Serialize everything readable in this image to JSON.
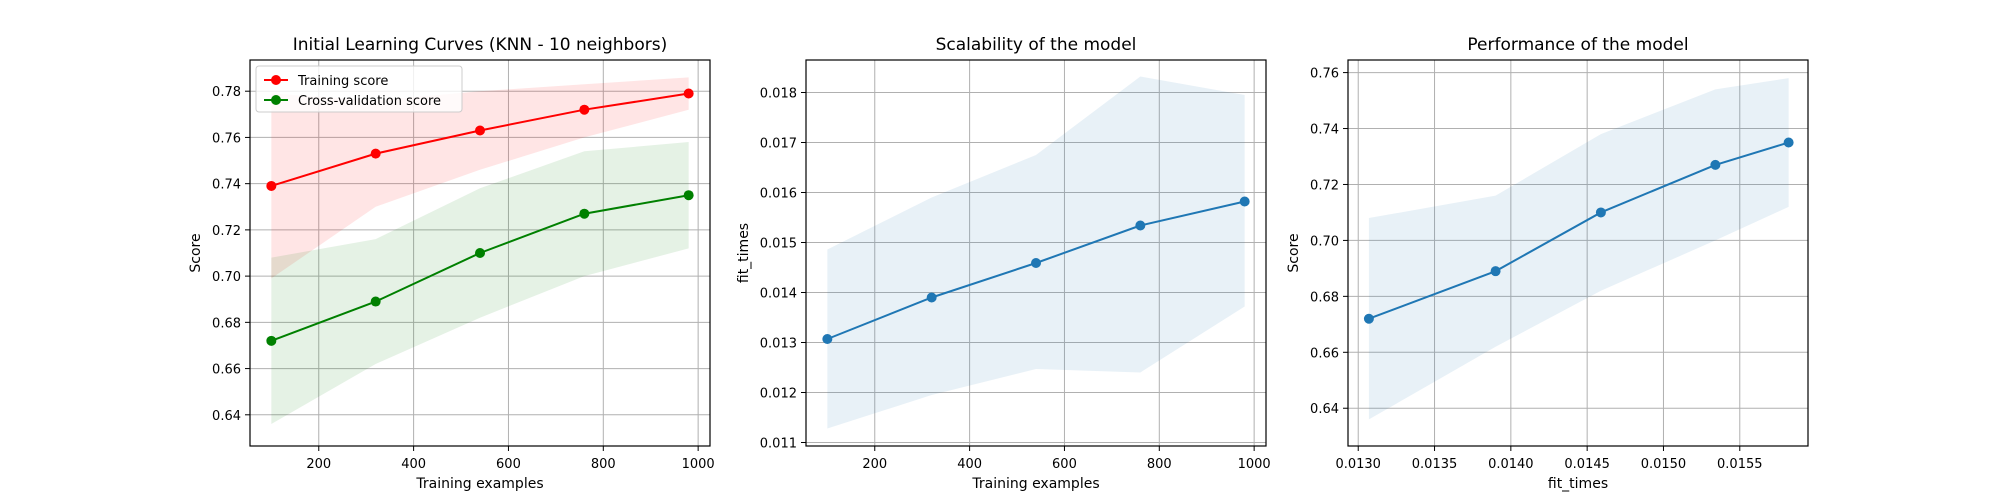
{
  "chart_data": [
    {
      "type": "line",
      "title": "Initial Learning Curves (KNN - 10 neighbors)",
      "xlabel": "Training examples",
      "ylabel": "Score",
      "xlim": [
        55,
        1025
      ],
      "ylim": [
        0.6265,
        0.7935
      ],
      "xticks": [
        200,
        400,
        600,
        800,
        1000
      ],
      "yticks": [
        0.64,
        0.66,
        0.68,
        0.7,
        0.72,
        0.74,
        0.76,
        0.78
      ],
      "ytick_decimals": 2,
      "xtick_decimals": 0,
      "grid": true,
      "legend": "top-left",
      "series": [
        {
          "name": "Training score",
          "color": "#ff0000",
          "x": [
            100,
            320,
            540,
            760,
            980
          ],
          "y": [
            0.739,
            0.753,
            0.763,
            0.772,
            0.779
          ],
          "band_lower": [
            0.699,
            0.73,
            0.746,
            0.76,
            0.772
          ],
          "band_upper": [
            0.779,
            0.776,
            0.78,
            0.783,
            0.786
          ],
          "band_color": "#ff0000"
        },
        {
          "name": "Cross-validation score",
          "color": "#008000",
          "x": [
            100,
            320,
            540,
            760,
            980
          ],
          "y": [
            0.672,
            0.689,
            0.71,
            0.727,
            0.735
          ],
          "band_lower": [
            0.636,
            0.662,
            0.682,
            0.7,
            0.712
          ],
          "band_upper": [
            0.708,
            0.716,
            0.738,
            0.754,
            0.758
          ],
          "band_color": "#008000"
        }
      ]
    },
    {
      "type": "line",
      "title": "Scalability of the model",
      "xlabel": "Training examples",
      "ylabel": "fit_times",
      "xlim": [
        55,
        1025
      ],
      "ylim": [
        0.01093,
        0.01865
      ],
      "xticks": [
        200,
        400,
        600,
        800,
        1000
      ],
      "yticks": [
        0.011,
        0.012,
        0.013,
        0.014,
        0.015,
        0.016,
        0.017,
        0.018
      ],
      "ytick_decimals": 3,
      "xtick_decimals": 0,
      "grid": true,
      "series": [
        {
          "color": "#1f77b4",
          "x": [
            100,
            320,
            540,
            760,
            980
          ],
          "y": [
            0.01307,
            0.0139,
            0.01459,
            0.01534,
            0.01582
          ],
          "band_lower": [
            0.01128,
            0.01195,
            0.01247,
            0.0124,
            0.01372
          ],
          "band_upper": [
            0.01486,
            0.0159,
            0.01675,
            0.01832,
            0.01795
          ],
          "band_color": "#1f77b4"
        }
      ]
    },
    {
      "type": "line",
      "title": "Performance of the model",
      "xlabel": "fit_times",
      "ylabel": "Score",
      "xlim": [
        0.012933,
        0.015947
      ],
      "ylim": [
        0.6265,
        0.7645
      ],
      "xticks": [
        0.013,
        0.0135,
        0.014,
        0.0145,
        0.015,
        0.0155
      ],
      "yticks": [
        0.64,
        0.66,
        0.68,
        0.7,
        0.72,
        0.74,
        0.76
      ],
      "ytick_decimals": 2,
      "xtick_decimals": 4,
      "grid": true,
      "series": [
        {
          "color": "#1f77b4",
          "x": [
            0.01307,
            0.0139,
            0.01459,
            0.01534,
            0.01582
          ],
          "y": [
            0.672,
            0.689,
            0.71,
            0.727,
            0.735
          ],
          "band_lower": [
            0.636,
            0.662,
            0.682,
            0.7,
            0.712
          ],
          "band_upper": [
            0.708,
            0.716,
            0.738,
            0.754,
            0.758
          ],
          "band_color": "#1f77b4"
        }
      ]
    }
  ]
}
